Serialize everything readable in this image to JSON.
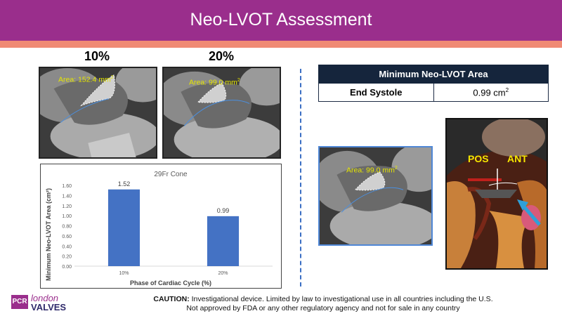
{
  "header": {
    "title": "Neo-LVOT Assessment"
  },
  "phases": {
    "p10": "10%",
    "p20": "20%"
  },
  "ct_images": {
    "img10": {
      "area_label": "Area: 152.4 mm",
      "unit_sup": "2"
    },
    "img20": {
      "area_label": "Area: 99.0 mm",
      "unit_sup": "2"
    },
    "img_center": {
      "area_label": "Area: 99.0 mm",
      "unit_sup": "2"
    }
  },
  "summary_table": {
    "header": "Minimum Neo-LVOT Area",
    "row_label": "End Systole",
    "row_value": "0.99 cm",
    "row_value_sup": "2"
  },
  "anatomy": {
    "label_pos": "POS",
    "label_ant": "ANT"
  },
  "chart_data": {
    "type": "bar",
    "title": "29Fr Cone",
    "xlabel": "Phase of Cardiac Cycle (%)",
    "ylabel": "Minimum Neo-LVOT Area (cm²)",
    "categories": [
      "10%",
      "20%"
    ],
    "values": [
      1.52,
      0.99
    ],
    "data_labels": [
      "1.52",
      "0.99"
    ],
    "ylim": [
      0,
      1.6
    ],
    "yticks": [
      "0.00",
      "0.20",
      "0.40",
      "0.60",
      "0.80",
      "1.00",
      "1.20",
      "1.40",
      "1.60"
    ],
    "bar_color": "#4472c4",
    "grid": false,
    "legend": "none"
  },
  "footer": {
    "logo_pcr": "PCR",
    "logo_london": "london",
    "logo_valves": "VALVES",
    "caution_label": "CAUTION:",
    "caution_line1": " Investigational device. Limited by law to investigational use in all countries including the U.S.",
    "caution_line2": "Not approved by FDA or any other regulatory agency and not for sale in any country"
  },
  "colors": {
    "title_bar": "#9a2e8c",
    "accent_stripe": "#f08a74",
    "table_header": "#15253c",
    "area_text": "#e6e600",
    "divider": "#3b6fc4"
  }
}
